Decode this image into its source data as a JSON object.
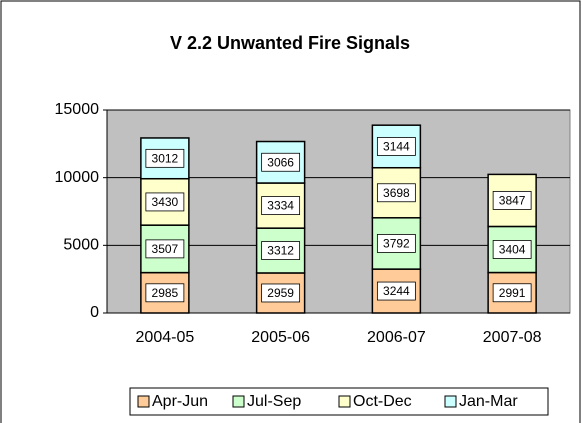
{
  "chart_data": {
    "type": "stacked-bar",
    "title": "V 2.2 Unwanted Fire Signals",
    "categories": [
      "2004-05",
      "2005-06",
      "2006-07",
      "2007-08"
    ],
    "series": [
      {
        "name": "Apr-Jun",
        "color": "#ffcc99",
        "values": [
          2985,
          2959,
          3244,
          2991
        ]
      },
      {
        "name": "Jul-Sep",
        "color": "#ccffcc",
        "values": [
          3507,
          3312,
          3792,
          3404
        ]
      },
      {
        "name": "Oct-Dec",
        "color": "#ffffcc",
        "values": [
          3430,
          3334,
          3698,
          3847
        ]
      },
      {
        "name": "Jan-Mar",
        "color": "#ccffff",
        "values": [
          3012,
          3066,
          3144,
          null
        ]
      }
    ],
    "ylim": [
      0,
      15000
    ],
    "yticks": [
      0,
      5000,
      10000,
      15000
    ],
    "grid": true,
    "legend": "bottom"
  }
}
